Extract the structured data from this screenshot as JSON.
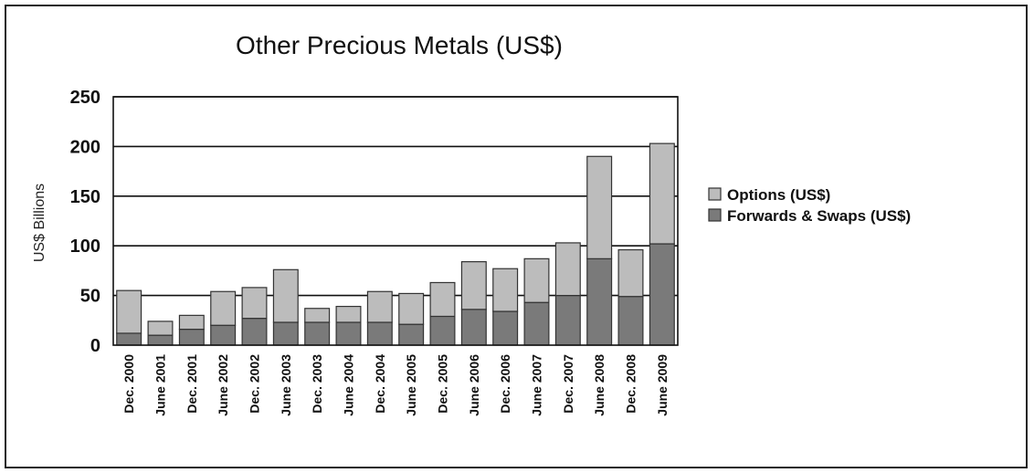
{
  "chart_data": {
    "type": "bar",
    "stacked": true,
    "title": "Other Precious Metals (US$)",
    "xlabel": "",
    "ylabel": "US$ Billions",
    "ylim": [
      0,
      250
    ],
    "yticks": [
      0,
      50,
      100,
      150,
      200,
      250
    ],
    "grid": true,
    "legend_position": "right",
    "categories": [
      "Dec. 2000",
      "June 2001",
      "Dec. 2001",
      "June 2002",
      "Dec. 2002",
      "June 2003",
      "Dec. 2003",
      "June 2004",
      "Dec. 2004",
      "June 2005",
      "Dec. 2005",
      "June 2006",
      "Dec. 2006",
      "June 2007",
      "Dec. 2007",
      "June 2008",
      "Dec. 2008",
      "June 2009"
    ],
    "series": [
      {
        "name": "Forwards & Swaps (US$)",
        "color": "#7a7a7a",
        "values": [
          12,
          10,
          16,
          20,
          27,
          23,
          23,
          23,
          23,
          21,
          29,
          36,
          34,
          43,
          50,
          87,
          49,
          102
        ]
      },
      {
        "name": "Options (US$)",
        "color": "#bcbcbc",
        "values": [
          43,
          14,
          14,
          34,
          31,
          53,
          14,
          16,
          31,
          31,
          34,
          48,
          43,
          44,
          53,
          103,
          47,
          101
        ]
      }
    ]
  }
}
